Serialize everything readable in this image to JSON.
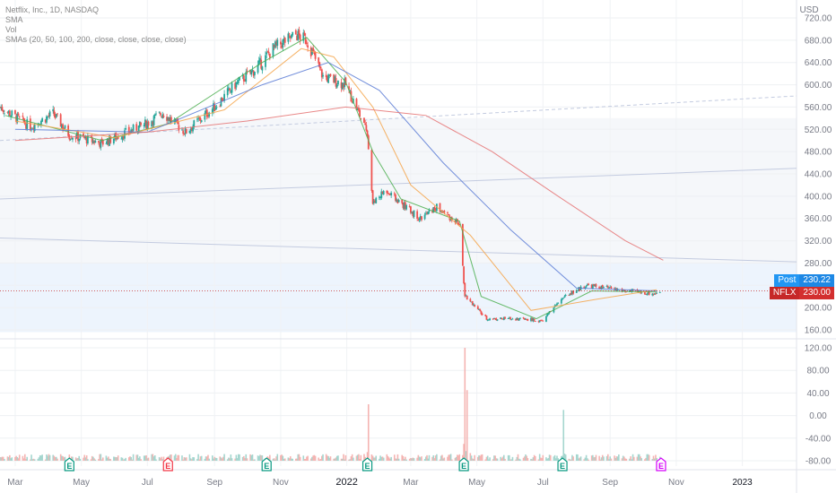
{
  "legend": {
    "symbol": "Netflix, Inc., 1D, NASDAQ",
    "sma": "SMA",
    "vol": "Vol",
    "smas": "SMAs (20, 50, 100, 200, close, close, close, close)"
  },
  "currency": "USD",
  "tags": {
    "post_label": "Post",
    "post_value": "230.22",
    "last_label": "NFLX",
    "last_value": "230.00"
  },
  "earnings_marker": "E",
  "colors": {
    "up": "#26a69a",
    "down": "#ef5350",
    "post": "#2196f3",
    "last": "#c62828",
    "sma20": "#4caf50",
    "sma50": "#f5a54a",
    "sma100": "#5b7bd5",
    "sma200": "#e57373",
    "earnings_green": "#089981",
    "earnings_red": "#f23645",
    "earnings_pink": "#d500f9"
  },
  "chart_data": {
    "type": "candlestick",
    "x_axis": {
      "ticks": [
        "Mar",
        "May",
        "Jul",
        "Sep",
        "Nov",
        "2022",
        "Mar",
        "May",
        "Jul",
        "Sep",
        "Nov",
        "2023"
      ],
      "tick_months": [
        "2021-03",
        "2021-05",
        "2021-07",
        "2021-09",
        "2021-11",
        "2022-01",
        "2022-03",
        "2022-05",
        "2022-07",
        "2022-09",
        "2022-11",
        "2023-01"
      ],
      "range": [
        "2021-02-15",
        "2023-02-20"
      ]
    },
    "price_axis": {
      "ticks": [
        "720.00",
        "680.00",
        "640.00",
        "600.00",
        "560.00",
        "520.00",
        "480.00",
        "440.00",
        "400.00",
        "360.00",
        "320.00",
        "280.00",
        "240.00",
        "200.00",
        "160.00"
      ],
      "range": [
        160,
        720
      ]
    },
    "volume_axis": {
      "ticks": [
        "120.00",
        "80.00",
        "40.00",
        "0.00",
        "-40.00",
        "-80.00"
      ],
      "range": [
        -80,
        120
      ]
    },
    "price_path": [
      [
        "2021-02-15",
        560
      ],
      [
        "2021-03-15",
        525
      ],
      [
        "2021-04-05",
        548
      ],
      [
        "2021-04-20",
        510
      ],
      [
        "2021-05-20",
        495
      ],
      [
        "2021-06-30",
        530
      ],
      [
        "2021-07-15",
        550
      ],
      [
        "2021-08-05",
        515
      ],
      [
        "2021-09-01",
        560
      ],
      [
        "2021-09-20",
        600
      ],
      [
        "2021-10-10",
        630
      ],
      [
        "2021-10-25",
        665
      ],
      [
        "2021-11-15",
        690
      ],
      [
        "2021-11-25",
        680
      ],
      [
        "2021-12-10",
        615
      ],
      [
        "2021-12-31",
        600
      ],
      [
        "2022-01-12",
        550
      ],
      [
        "2022-01-20",
        510
      ],
      [
        "2022-01-25",
        390
      ],
      [
        "2022-02-05",
        410
      ],
      [
        "2022-02-25",
        380
      ],
      [
        "2022-03-10",
        360
      ],
      [
        "2022-03-25",
        380
      ],
      [
        "2022-04-15",
        350
      ],
      [
        "2022-04-20",
        220
      ],
      [
        "2022-05-10",
        180
      ],
      [
        "2022-06-15",
        180
      ],
      [
        "2022-06-30",
        175
      ],
      [
        "2022-07-20",
        220
      ],
      [
        "2022-08-10",
        240
      ],
      [
        "2022-09-15",
        230
      ],
      [
        "2022-10-12",
        225
      ],
      [
        "2022-10-17",
        230
      ]
    ],
    "sma_series": [
      {
        "period": 20,
        "path": [
          [
            "2021-02-20",
            545
          ],
          [
            "2021-05-20",
            500
          ],
          [
            "2021-07-20",
            530
          ],
          [
            "2021-10-15",
            640
          ],
          [
            "2021-11-25",
            685
          ],
          [
            "2021-12-31",
            605
          ],
          [
            "2022-01-25",
            480
          ],
          [
            "2022-02-20",
            395
          ],
          [
            "2022-04-15",
            355
          ],
          [
            "2022-05-05",
            220
          ],
          [
            "2022-06-25",
            180
          ],
          [
            "2022-08-15",
            230
          ],
          [
            "2022-10-14",
            228
          ]
        ]
      },
      {
        "period": 50,
        "path": [
          [
            "2021-03-01",
            535
          ],
          [
            "2021-06-01",
            505
          ],
          [
            "2021-09-10",
            555
          ],
          [
            "2021-11-20",
            665
          ],
          [
            "2021-12-20",
            650
          ],
          [
            "2022-01-25",
            560
          ],
          [
            "2022-03-01",
            420
          ],
          [
            "2022-04-25",
            330
          ],
          [
            "2022-06-20",
            195
          ],
          [
            "2022-08-20",
            215
          ],
          [
            "2022-10-14",
            232
          ]
        ]
      },
      {
        "period": 100,
        "path": [
          [
            "2021-03-01",
            520
          ],
          [
            "2021-07-01",
            515
          ],
          [
            "2021-10-15",
            600
          ],
          [
            "2021-12-15",
            640
          ],
          [
            "2022-01-31",
            590
          ],
          [
            "2022-03-31",
            460
          ],
          [
            "2022-06-01",
            340
          ],
          [
            "2022-08-01",
            235
          ],
          [
            "2022-10-14",
            230
          ]
        ]
      },
      {
        "period": 200,
        "path": [
          [
            "2021-03-01",
            500
          ],
          [
            "2021-07-01",
            515
          ],
          [
            "2021-10-01",
            535
          ],
          [
            "2021-12-31",
            560
          ],
          [
            "2022-03-15",
            545
          ],
          [
            "2022-05-15",
            480
          ],
          [
            "2022-07-15",
            400
          ],
          [
            "2022-09-15",
            320
          ],
          [
            "2022-10-20",
            285
          ]
        ]
      }
    ],
    "last_close": 230.0,
    "post_market": 230.22,
    "volume_spikes": [
      [
        "2022-01-21",
        20
      ],
      [
        "2022-04-20",
        120
      ],
      [
        "2022-04-22",
        45
      ],
      [
        "2022-07-20",
        10
      ]
    ],
    "earnings_dates": [
      "2021-04-20",
      "2021-07-20",
      "2021-10-19",
      "2022-01-20",
      "2022-04-19",
      "2022-07-19",
      "2022-10-18"
    ],
    "earnings_marker_colors": [
      "green",
      "red",
      "green",
      "green",
      "green",
      "green",
      "pink"
    ]
  }
}
